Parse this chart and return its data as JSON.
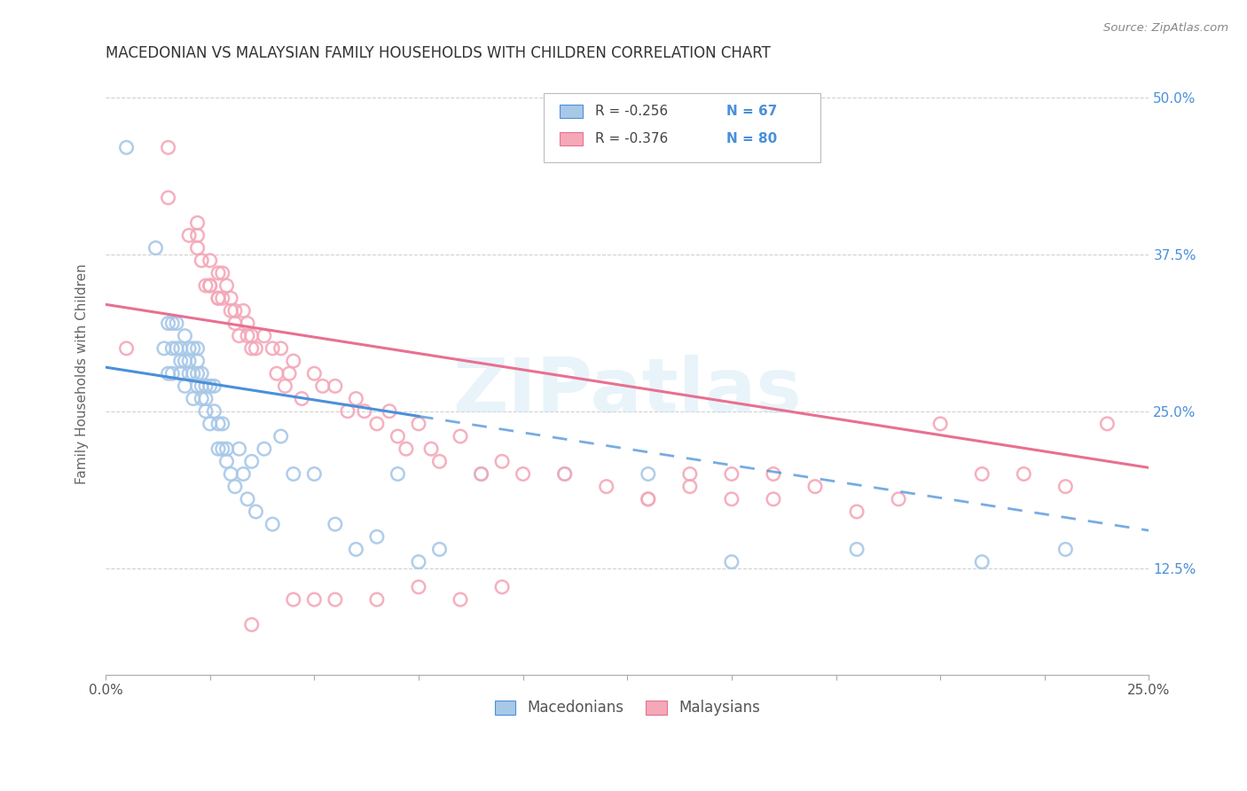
{
  "title": "MACEDONIAN VS MALAYSIAN FAMILY HOUSEHOLDS WITH CHILDREN CORRELATION CHART",
  "source": "Source: ZipAtlas.com",
  "ylabel": "Family Households with Children",
  "xlabel_macedonians": "Macedonians",
  "xlabel_malaysians": "Malaysians",
  "legend_r_macedonian": "R = -0.256",
  "legend_n_macedonian": "N = 67",
  "legend_r_malaysian": "R = -0.376",
  "legend_n_malaysian": "N = 80",
  "xlim": [
    0.0,
    0.25
  ],
  "ylim": [
    0.04,
    0.52
  ],
  "yticks": [
    0.125,
    0.25,
    0.375,
    0.5
  ],
  "ytick_labels": [
    "12.5%",
    "25.0%",
    "37.5%",
    "50.0%"
  ],
  "color_macedonian": "#a8c8e8",
  "color_malaysian": "#f4a8b8",
  "trend_macedonian_color": "#4a90d9",
  "trend_malaysian_color": "#e87090",
  "watermark": "ZIPatlas",
  "background_color": "#ffffff",
  "grid_color": "#cccccc",
  "macedonian_x": [
    0.005,
    0.012,
    0.014,
    0.015,
    0.015,
    0.016,
    0.016,
    0.016,
    0.017,
    0.017,
    0.018,
    0.018,
    0.018,
    0.019,
    0.019,
    0.019,
    0.02,
    0.02,
    0.02,
    0.021,
    0.021,
    0.021,
    0.022,
    0.022,
    0.022,
    0.022,
    0.023,
    0.023,
    0.023,
    0.024,
    0.024,
    0.024,
    0.025,
    0.025,
    0.026,
    0.026,
    0.027,
    0.027,
    0.028,
    0.028,
    0.029,
    0.029,
    0.03,
    0.031,
    0.032,
    0.033,
    0.034,
    0.035,
    0.036,
    0.038,
    0.04,
    0.042,
    0.045,
    0.05,
    0.055,
    0.06,
    0.065,
    0.07,
    0.075,
    0.08,
    0.09,
    0.11,
    0.13,
    0.15,
    0.18,
    0.21,
    0.23
  ],
  "macedonian_y": [
    0.46,
    0.38,
    0.3,
    0.28,
    0.32,
    0.3,
    0.28,
    0.32,
    0.32,
    0.3,
    0.29,
    0.3,
    0.28,
    0.29,
    0.31,
    0.27,
    0.29,
    0.28,
    0.3,
    0.28,
    0.3,
    0.26,
    0.29,
    0.28,
    0.27,
    0.3,
    0.26,
    0.27,
    0.28,
    0.26,
    0.25,
    0.27,
    0.27,
    0.24,
    0.25,
    0.27,
    0.24,
    0.22,
    0.22,
    0.24,
    0.21,
    0.22,
    0.2,
    0.19,
    0.22,
    0.2,
    0.18,
    0.21,
    0.17,
    0.22,
    0.16,
    0.23,
    0.2,
    0.2,
    0.16,
    0.14,
    0.15,
    0.2,
    0.13,
    0.14,
    0.2,
    0.2,
    0.2,
    0.13,
    0.14,
    0.13,
    0.14
  ],
  "malaysian_x": [
    0.005,
    0.015,
    0.02,
    0.022,
    0.022,
    0.023,
    0.024,
    0.025,
    0.025,
    0.027,
    0.027,
    0.028,
    0.028,
    0.029,
    0.03,
    0.03,
    0.031,
    0.031,
    0.032,
    0.033,
    0.034,
    0.034,
    0.035,
    0.035,
    0.036,
    0.038,
    0.04,
    0.041,
    0.042,
    0.043,
    0.044,
    0.045,
    0.047,
    0.05,
    0.052,
    0.055,
    0.058,
    0.06,
    0.062,
    0.065,
    0.068,
    0.07,
    0.072,
    0.075,
    0.078,
    0.08,
    0.085,
    0.09,
    0.095,
    0.1,
    0.11,
    0.12,
    0.13,
    0.14,
    0.15,
    0.16,
    0.17,
    0.18,
    0.19,
    0.2,
    0.21,
    0.22,
    0.23,
    0.24,
    0.15,
    0.16,
    0.13,
    0.14,
    0.095,
    0.085,
    0.075,
    0.065,
    0.055,
    0.05,
    0.045,
    0.035,
    0.027,
    0.022,
    0.015,
    0.025
  ],
  "malaysian_y": [
    0.3,
    0.46,
    0.39,
    0.39,
    0.38,
    0.37,
    0.35,
    0.37,
    0.35,
    0.36,
    0.34,
    0.36,
    0.34,
    0.35,
    0.33,
    0.34,
    0.32,
    0.33,
    0.31,
    0.33,
    0.32,
    0.31,
    0.3,
    0.31,
    0.3,
    0.31,
    0.3,
    0.28,
    0.3,
    0.27,
    0.28,
    0.29,
    0.26,
    0.28,
    0.27,
    0.27,
    0.25,
    0.26,
    0.25,
    0.24,
    0.25,
    0.23,
    0.22,
    0.24,
    0.22,
    0.21,
    0.23,
    0.2,
    0.21,
    0.2,
    0.2,
    0.19,
    0.18,
    0.19,
    0.18,
    0.18,
    0.19,
    0.17,
    0.18,
    0.24,
    0.2,
    0.2,
    0.19,
    0.24,
    0.2,
    0.2,
    0.18,
    0.2,
    0.11,
    0.1,
    0.11,
    0.1,
    0.1,
    0.1,
    0.1,
    0.08,
    0.34,
    0.4,
    0.42,
    0.35
  ]
}
